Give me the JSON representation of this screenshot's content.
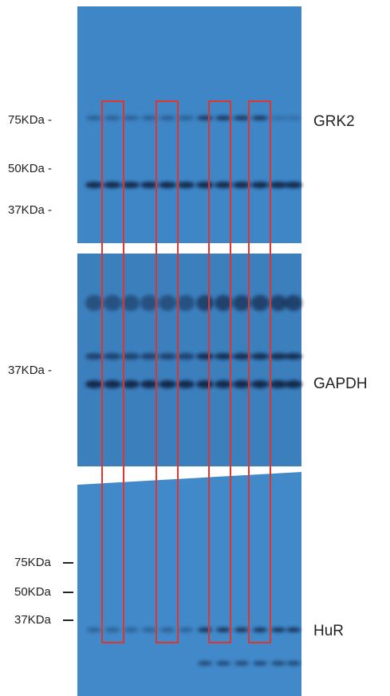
{
  "panels": [
    {
      "label": "GRK2",
      "markers": [
        "75KDa -",
        "50KDa -",
        "37KDa -"
      ]
    },
    {
      "label": "GAPDH",
      "markers": [
        "37KDa -"
      ]
    },
    {
      "label": "HuR",
      "markers": [
        "75KDa",
        "50KDa",
        "37KDa"
      ]
    }
  ]
}
